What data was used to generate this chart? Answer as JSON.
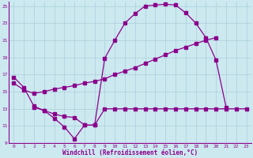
{
  "bg_color": "#cce9f0",
  "grid_color": "#aacfda",
  "line_color": "#8b008b",
  "xlabel": "Windchill (Refroidissement éolien,°C)",
  "xlim": [
    -0.5,
    23.5
  ],
  "ylim": [
    9,
    25.5
  ],
  "yticks": [
    9,
    11,
    13,
    15,
    17,
    19,
    21,
    23,
    25
  ],
  "xticks": [
    0,
    1,
    2,
    3,
    4,
    5,
    6,
    7,
    8,
    9,
    10,
    11,
    12,
    13,
    14,
    15,
    16,
    17,
    18,
    19,
    20,
    21,
    22,
    23
  ],
  "line1_x": [
    0,
    1,
    2,
    3,
    4,
    5,
    6,
    7,
    8,
    9,
    10,
    11,
    12,
    13,
    14,
    15,
    16,
    17,
    18,
    19,
    20,
    21,
    22,
    23
  ],
  "line1_y": [
    16.7,
    15.5,
    13.3,
    12.8,
    11.9,
    10.9,
    9.5,
    11.1,
    11.1,
    18.9,
    21.0,
    23.0,
    24.1,
    25.0,
    25.1,
    25.2,
    25.1,
    24.2,
    23.0,
    21.3,
    18.7,
    13.2,
    null,
    null
  ],
  "line2_x": [
    0,
    1,
    2,
    3,
    4,
    5,
    6,
    7,
    8,
    9,
    10,
    11,
    12,
    13,
    14,
    15,
    16,
    17,
    18,
    19,
    20
  ],
  "line2_y": [
    16.0,
    15.2,
    14.8,
    15.0,
    15.3,
    15.5,
    15.7,
    16.0,
    16.2,
    16.5,
    17.0,
    17.4,
    17.8,
    18.3,
    18.8,
    19.3,
    19.8,
    20.2,
    20.6,
    21.0,
    21.3
  ],
  "line3_x": [
    2,
    3,
    4,
    5,
    6,
    7,
    8,
    9,
    10,
    11,
    12,
    13,
    14,
    15,
    16,
    17,
    18,
    19,
    20,
    21,
    22,
    23
  ],
  "line3_y": [
    13.2,
    12.8,
    12.4,
    12.1,
    12.0,
    11.1,
    11.1,
    13.0,
    13.0,
    13.0,
    13.0,
    13.0,
    13.0,
    13.0,
    13.0,
    13.0,
    13.0,
    13.0,
    13.0,
    13.0,
    13.0,
    13.0
  ]
}
